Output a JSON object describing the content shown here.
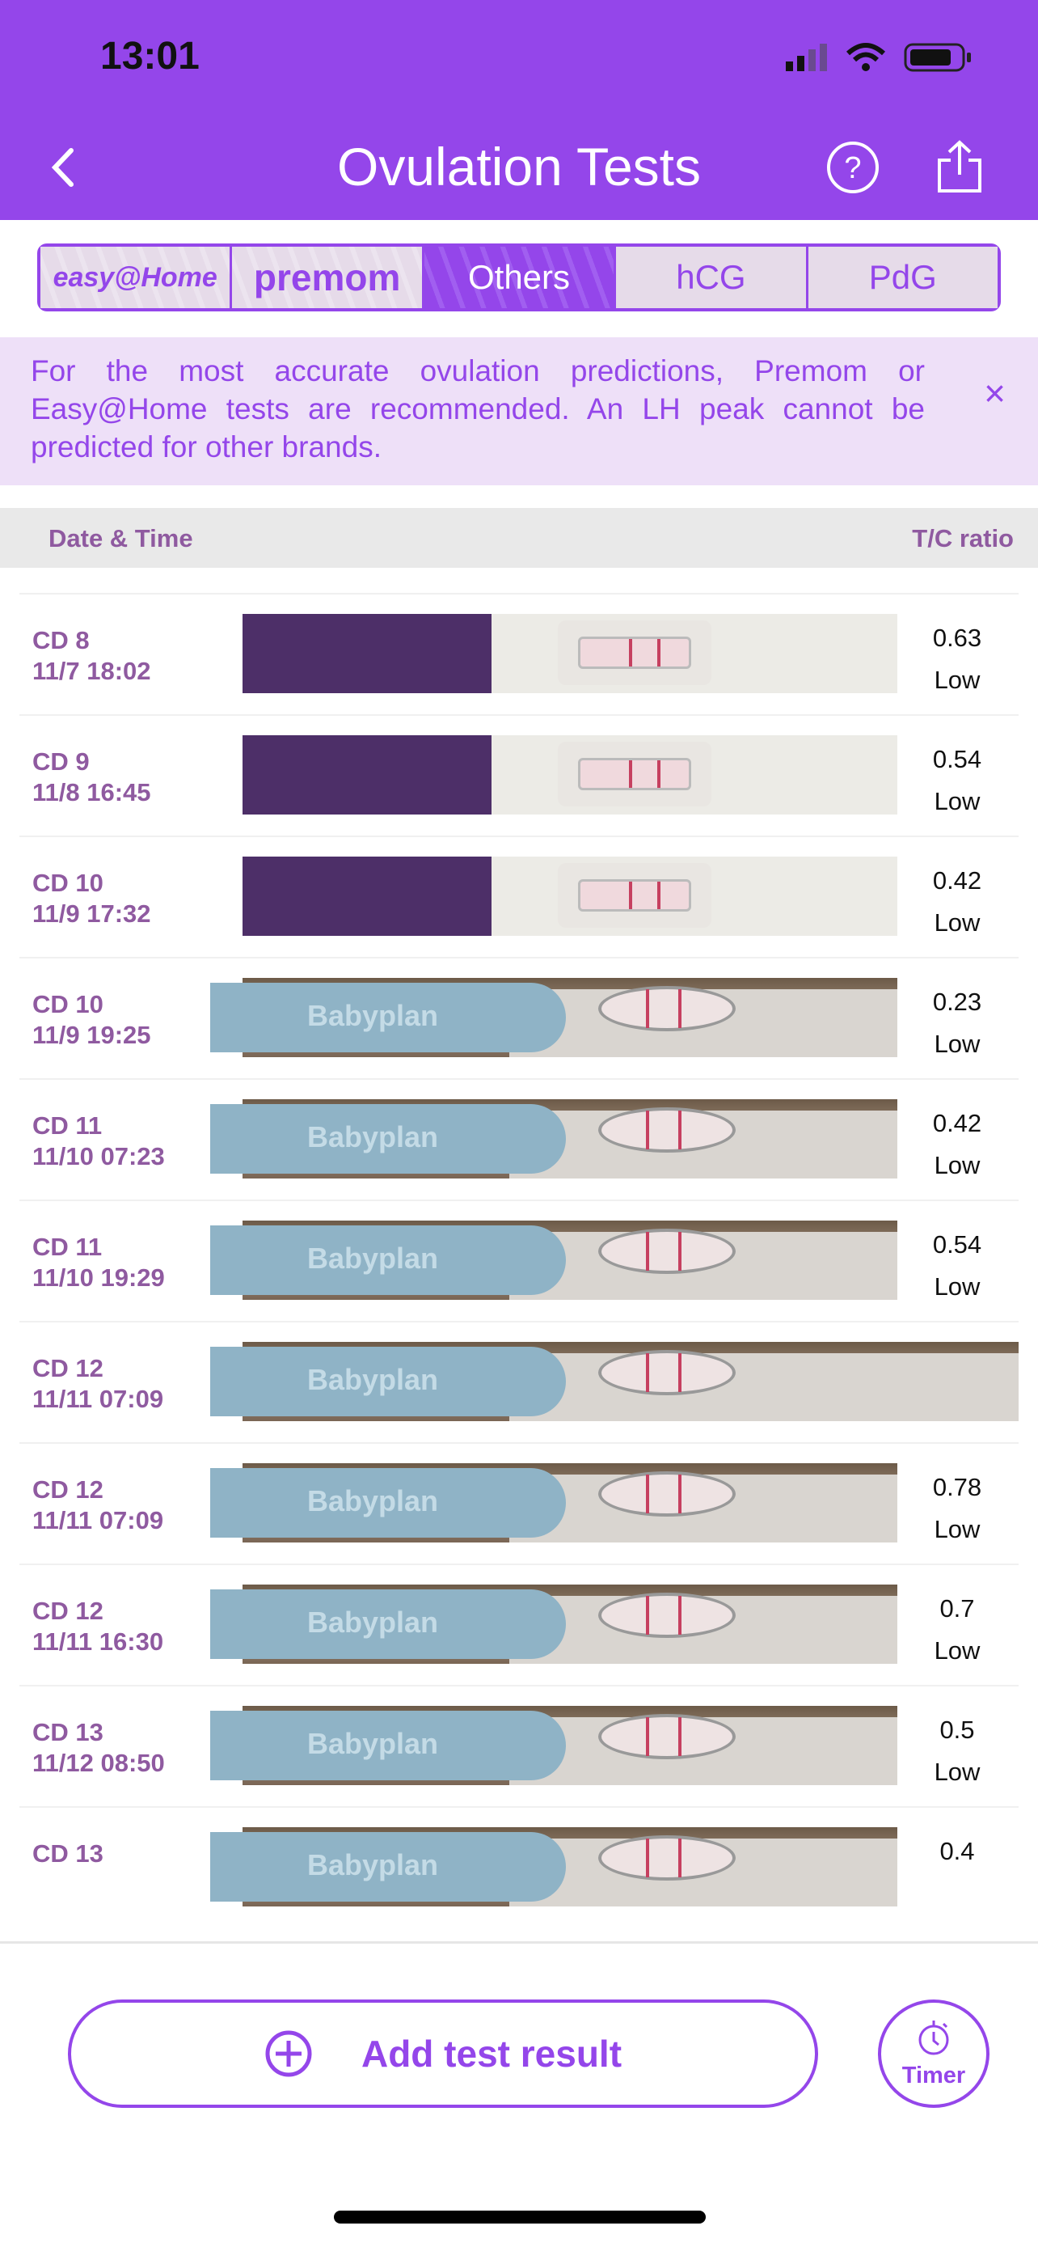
{
  "status_bar": {
    "time": "13:01"
  },
  "header": {
    "title": "Ovulation Tests",
    "back_icon": "chevron-left-icon",
    "help_icon": "question-circle-icon",
    "share_icon": "share-icon",
    "color": "#9446ea"
  },
  "tabs": [
    {
      "label": "easy@Home",
      "type": "logo"
    },
    {
      "label": "premom",
      "type": "logo"
    },
    {
      "label": "Others",
      "active": true
    },
    {
      "label": "hCG"
    },
    {
      "label": "PdG"
    }
  ],
  "banner": {
    "text": "For the most accurate ovulation predictions, Premom or Easy@Home tests are recommended. An LH peak cannot be predicted for other brands.",
    "close": "×"
  },
  "table": {
    "col_date": "Date & Time",
    "col_ratio": "T/C ratio"
  },
  "rows": [
    {
      "cd": "CD 8",
      "dt": "11/7 18:02",
      "ratio": "0.63",
      "level": "Low",
      "brand": "generic"
    },
    {
      "cd": "CD 9",
      "dt": "11/8 16:45",
      "ratio": "0.54",
      "level": "Low",
      "brand": "generic"
    },
    {
      "cd": "CD 10",
      "dt": "11/9 17:32",
      "ratio": "0.42",
      "level": "Low",
      "brand": "generic"
    },
    {
      "cd": "CD 10",
      "dt": "11/9 19:25",
      "ratio": "0.23",
      "level": "Low",
      "brand": "Babyplan"
    },
    {
      "cd": "CD 11",
      "dt": "11/10 07:23",
      "ratio": "0.42",
      "level": "Low",
      "brand": "Babyplan"
    },
    {
      "cd": "CD 11",
      "dt": "11/10 19:29",
      "ratio": "0.54",
      "level": "Low",
      "brand": "Babyplan"
    },
    {
      "cd": "CD 12",
      "dt": "11/11 07:09",
      "ratio": "",
      "level": "",
      "brand": "Babyplan",
      "wide": true
    },
    {
      "cd": "CD 12",
      "dt": "11/11 07:09",
      "ratio": "0.78",
      "level": "Low",
      "brand": "Babyplan"
    },
    {
      "cd": "CD 12",
      "dt": "11/11 16:30",
      "ratio": "0.7",
      "level": "Low",
      "brand": "Babyplan"
    },
    {
      "cd": "CD 13",
      "dt": "11/12 08:50",
      "ratio": "0.5",
      "level": "Low",
      "brand": "Babyplan"
    },
    {
      "cd": "CD 13",
      "dt": "",
      "ratio": "0.4",
      "level": "",
      "brand": "Babyplan"
    }
  ],
  "footer": {
    "add_label": "Add test result",
    "timer_label": "Timer"
  }
}
